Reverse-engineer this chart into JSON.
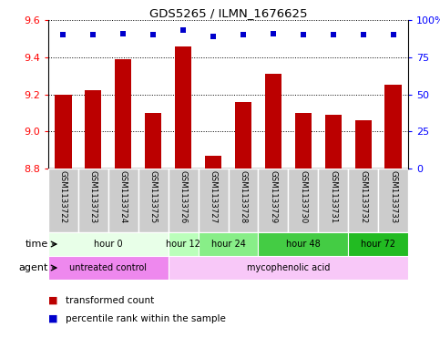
{
  "title": "GDS5265 / ILMN_1676625",
  "samples": [
    "GSM1133722",
    "GSM1133723",
    "GSM1133724",
    "GSM1133725",
    "GSM1133726",
    "GSM1133727",
    "GSM1133728",
    "GSM1133729",
    "GSM1133730",
    "GSM1133731",
    "GSM1133732",
    "GSM1133733"
  ],
  "transformed_count": [
    9.2,
    9.22,
    9.39,
    9.1,
    9.46,
    8.87,
    9.16,
    9.31,
    9.1,
    9.09,
    9.06,
    9.25
  ],
  "percentile_rank": [
    90,
    90,
    91,
    90,
    93,
    89,
    90,
    91,
    90,
    90,
    90,
    90
  ],
  "ylim": [
    8.8,
    9.6
  ],
  "ylim_right": [
    0,
    100
  ],
  "yticks_left": [
    8.8,
    9.0,
    9.2,
    9.4,
    9.6
  ],
  "yticks_right": [
    0,
    25,
    50,
    75,
    100
  ],
  "bar_color": "#bb0000",
  "dot_color": "#0000cc",
  "bar_width": 0.55,
  "time_groups": [
    {
      "label": "hour 0",
      "start": 0,
      "end": 3,
      "color": "#e8ffe8"
    },
    {
      "label": "hour 12",
      "start": 4,
      "end": 4,
      "color": "#bbffbb"
    },
    {
      "label": "hour 24",
      "start": 5,
      "end": 6,
      "color": "#88ee88"
    },
    {
      "label": "hour 48",
      "start": 7,
      "end": 9,
      "color": "#44cc44"
    },
    {
      "label": "hour 72",
      "start": 10,
      "end": 11,
      "color": "#22bb22"
    }
  ],
  "agent_groups": [
    {
      "label": "untreated control",
      "start": 0,
      "end": 3,
      "color": "#ee88ee"
    },
    {
      "label": "mycophenolic acid",
      "start": 4,
      "end": 11,
      "color": "#f8c8f8"
    }
  ],
  "time_label": "time",
  "agent_label": "agent",
  "legend_bar_label": "transformed count",
  "legend_dot_label": "percentile rank within the sample",
  "sample_box_color": "#cccccc",
  "plot_bg_color": "#ffffff"
}
